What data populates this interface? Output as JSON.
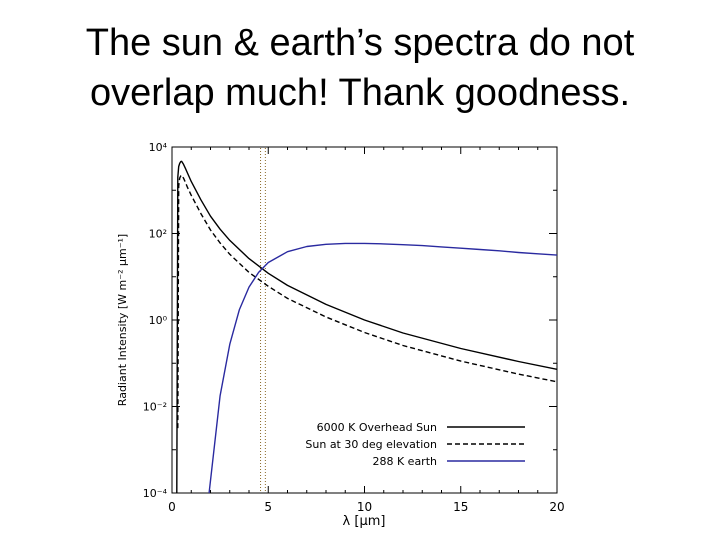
{
  "slide": {
    "title_line1": "The sun & earth’s spectra do not",
    "title_line2": "overlap much!  Thank goodness."
  },
  "chart_data": {
    "type": "line",
    "xlabel": "λ [μm]",
    "ylabel": "Radiant Intensity [W m⁻² μm⁻¹]",
    "xlim": [
      0,
      20
    ],
    "ylim_log10": [
      -4,
      4
    ],
    "y_scale": "log",
    "x_ticks": [
      0,
      5,
      10,
      15,
      20
    ],
    "x_tick_labels": [
      "0",
      "5",
      "10",
      "15",
      "20"
    ],
    "y_ticks_log10": [
      -4,
      -2,
      0,
      2,
      4
    ],
    "y_tick_labels": [
      "10⁻⁴",
      "10⁻²",
      "10⁰",
      "10²",
      "10⁴"
    ],
    "grid": false,
    "legend_position": "bottom-right",
    "vertical_marker_x": [
      4.6,
      4.85
    ],
    "colors": {
      "sun_overhead": "#000000",
      "sun_30deg": "#000000",
      "earth": "#2a2aa0",
      "marker": "#8a6a2a"
    },
    "series": [
      {
        "name": "6000 K Overhead Sun",
        "style": "solid",
        "x": [
          0.25,
          0.3,
          0.35,
          0.4,
          0.45,
          0.5,
          0.6,
          0.7,
          0.8,
          1,
          1.5,
          2,
          2.5,
          3,
          4,
          5,
          6,
          8,
          10,
          12,
          15,
          18,
          20
        ],
        "y_log10": [
          -4,
          3.3,
          3.55,
          3.62,
          3.66,
          3.67,
          3.6,
          3.5,
          3.4,
          3.2,
          2.78,
          2.4,
          2.1,
          1.84,
          1.42,
          1.08,
          0.8,
          0.36,
          0.0,
          -0.3,
          -0.66,
          -0.96,
          -1.14
        ]
      },
      {
        "name": "Sun at 30 deg elevation",
        "style": "dashed",
        "x": [
          0.3,
          0.35,
          0.4,
          0.45,
          0.5,
          0.6,
          0.7,
          0.8,
          1,
          1.5,
          2,
          2.5,
          3,
          4,
          5,
          6,
          8,
          10,
          12,
          15,
          18,
          20
        ],
        "y_log10": [
          -2.5,
          3.1,
          3.28,
          3.33,
          3.35,
          3.28,
          3.18,
          3.07,
          2.88,
          2.46,
          2.08,
          1.78,
          1.52,
          1.1,
          0.78,
          0.5,
          0.07,
          -0.29,
          -0.59,
          -0.95,
          -1.25,
          -1.43
        ]
      },
      {
        "name": "288 K earth",
        "style": "solid",
        "x": [
          1.9,
          2.5,
          3,
          3.5,
          4,
          4.5,
          5,
          6,
          7,
          8,
          9,
          10,
          11,
          12,
          13,
          14,
          15,
          16,
          17,
          18,
          19,
          20
        ],
        "y_log10": [
          -4.1,
          -1.75,
          -0.56,
          0.24,
          0.76,
          1.1,
          1.33,
          1.58,
          1.7,
          1.75,
          1.77,
          1.77,
          1.76,
          1.74,
          1.72,
          1.69,
          1.66,
          1.63,
          1.6,
          1.56,
          1.53,
          1.5
        ]
      }
    ]
  }
}
